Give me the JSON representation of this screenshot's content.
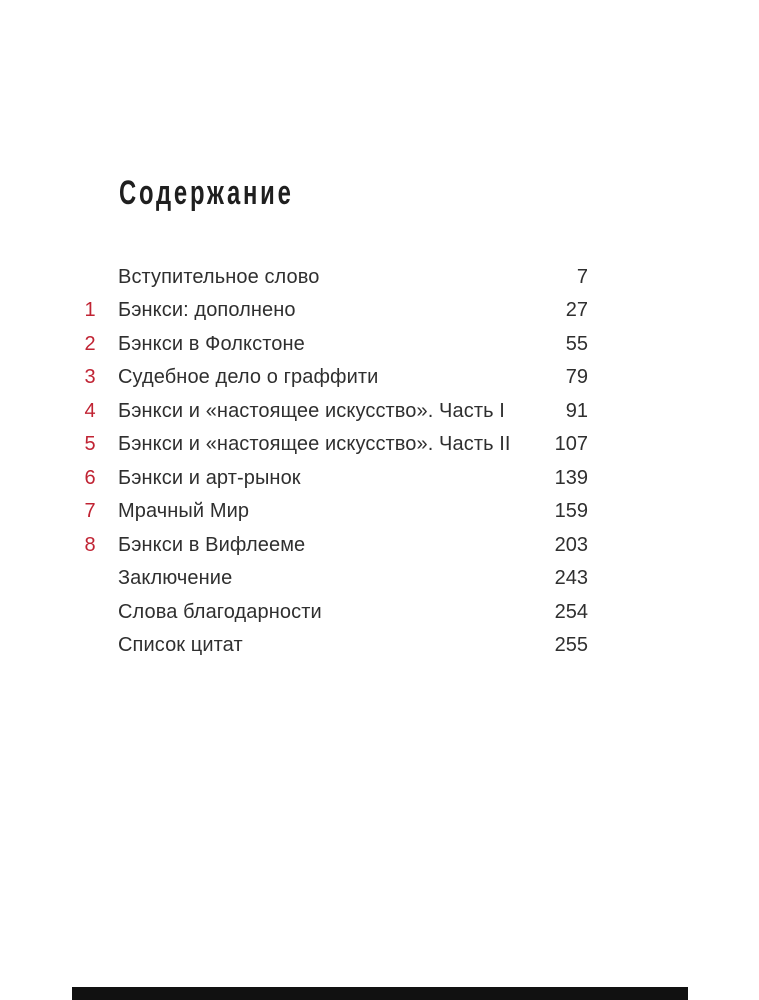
{
  "page": {
    "title": "Содержание",
    "colors": {
      "accent": "#c02333",
      "text": "#2f2f2f",
      "title": "#1f1f1f",
      "background": "#ffffff",
      "bottom_bar": "#111111"
    }
  },
  "toc": {
    "entries": [
      {
        "num": "",
        "title": "Вступительное слово",
        "page": "7"
      },
      {
        "num": "1",
        "title": "Бэнкси: дополнено",
        "page": "27"
      },
      {
        "num": "2",
        "title": "Бэнкси в Фолкстоне",
        "page": "55"
      },
      {
        "num": "3",
        "title": "Судебное дело о граффити",
        "page": "79"
      },
      {
        "num": "4",
        "title": "Бэнкси и «настоящее искусство». Часть I",
        "page": "91"
      },
      {
        "num": "5",
        "title": "Бэнкси и «настоящее искусство». Часть II",
        "page": "107"
      },
      {
        "num": "6",
        "title": "Бэнкси и арт-рынок",
        "page": "139"
      },
      {
        "num": "7",
        "title": "Мрачный Мир",
        "page": "159"
      },
      {
        "num": "8",
        "title": "Бэнкси в Вифлееме",
        "page": "203"
      },
      {
        "num": "",
        "title": "Заключение",
        "page": "243"
      },
      {
        "num": "",
        "title": "Слова благодарности",
        "page": "254"
      },
      {
        "num": "",
        "title": "Список цитат",
        "page": "255"
      }
    ]
  }
}
